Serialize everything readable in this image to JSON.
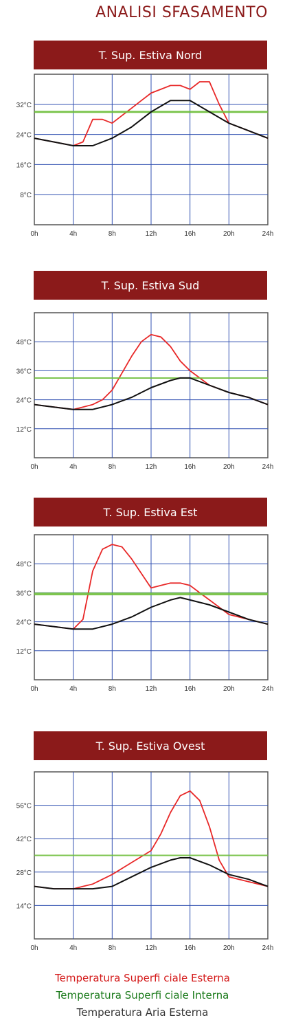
{
  "page": {
    "title": "ANALISI SFASAMENTO"
  },
  "colors": {
    "header_bg": "#8b1a1a",
    "surface_ext": "#e82828",
    "surface_int": "#6fbf3c",
    "air_ext": "#111111",
    "grid": "#2f4fb0"
  },
  "legend": {
    "red": "Temperatura Superfi ciale Esterna",
    "green": "Temperatura Superfi ciale Interna",
    "black": "Temperatura Aria Esterna"
  },
  "chart_data": [
    {
      "type": "line",
      "title": "T. Sup. Estiva Nord",
      "x_tick_labels": [
        "0h",
        "4h",
        "8h",
        "12h",
        "16h",
        "20h",
        "24h"
      ],
      "y_tick_labels": [
        "8°C",
        "16°C",
        "24°C",
        "32°C"
      ],
      "xlim": [
        0,
        24
      ],
      "ylim": [
        0,
        40
      ],
      "grid": true,
      "series": [
        {
          "name": "Temperatura Superfi ciale Esterna",
          "color": "#e82828",
          "x": [
            0,
            2,
            4,
            5,
            6,
            7,
            8,
            9,
            10,
            11,
            12,
            13,
            14,
            15,
            16,
            17,
            18,
            19,
            20,
            22,
            24
          ],
          "y": [
            23,
            22,
            21,
            22,
            28,
            28,
            27,
            29,
            31,
            33,
            35,
            36,
            37,
            37,
            36,
            38,
            38,
            32,
            27,
            25,
            23
          ]
        },
        {
          "name": "Temperatura Superfi ciale Interna",
          "color": "#6fbf3c",
          "constant": 30,
          "thickness": 3
        },
        {
          "name": "Temperatura Aria Esterna",
          "color": "#111111",
          "x": [
            0,
            2,
            4,
            6,
            8,
            10,
            12,
            14,
            15,
            16,
            18,
            20,
            22,
            24
          ],
          "y": [
            23,
            22,
            21,
            21,
            23,
            26,
            30,
            33,
            33,
            33,
            30,
            27,
            25,
            23
          ]
        }
      ]
    },
    {
      "type": "line",
      "title": "T. Sup. Estiva Sud",
      "x_tick_labels": [
        "0h",
        "4h",
        "8h",
        "12h",
        "16h",
        "20h",
        "24h"
      ],
      "y_tick_labels": [
        "12°C",
        "24°C",
        "36°C",
        "48°C"
      ],
      "xlim": [
        0,
        24
      ],
      "ylim": [
        0,
        60
      ],
      "grid": true,
      "series": [
        {
          "name": "Temperatura Superfi ciale Esterna",
          "color": "#e82828",
          "x": [
            0,
            2,
            4,
            5,
            6,
            7,
            8,
            9,
            10,
            11,
            12,
            13,
            14,
            15,
            16,
            17,
            18,
            20,
            22,
            24
          ],
          "y": [
            22,
            21,
            20,
            21,
            22,
            24,
            28,
            35,
            42,
            48,
            51,
            50,
            46,
            40,
            36,
            33,
            30,
            27,
            25,
            22
          ]
        },
        {
          "name": "Temperatura Superfi ciale Interna",
          "color": "#6fbf3c",
          "constant": 33,
          "thickness": 2
        },
        {
          "name": "Temperatura Aria Esterna",
          "color": "#111111",
          "x": [
            0,
            2,
            4,
            6,
            8,
            10,
            12,
            14,
            15,
            16,
            18,
            20,
            22,
            24
          ],
          "y": [
            22,
            21,
            20,
            20,
            22,
            25,
            29,
            32,
            33,
            33,
            30,
            27,
            25,
            22
          ]
        }
      ]
    },
    {
      "type": "line",
      "title": "T. Sup. Estiva Est",
      "x_tick_labels": [
        "0h",
        "4h",
        "8h",
        "12h",
        "16h",
        "20h",
        "24h"
      ],
      "y_tick_labels": [
        "12°C",
        "24°C",
        "36°C",
        "48°C"
      ],
      "xlim": [
        0,
        24
      ],
      "ylim": [
        0,
        60
      ],
      "grid": true,
      "series": [
        {
          "name": "Temperatura Superfi ciale Esterna",
          "color": "#e82828",
          "x": [
            0,
            2,
            4,
            5,
            6,
            7,
            8,
            9,
            10,
            11,
            12,
            13,
            14,
            15,
            16,
            17,
            18,
            20,
            22,
            24
          ],
          "y": [
            23,
            22,
            21,
            25,
            45,
            54,
            56,
            55,
            50,
            44,
            38,
            39,
            40,
            40,
            39,
            36,
            33,
            27,
            25,
            23
          ]
        },
        {
          "name": "Temperatura Superfi ciale Interna",
          "color": "#6fbf3c",
          "constant": 35.5,
          "thickness": 4
        },
        {
          "name": "Temperatura Aria Esterna",
          "color": "#111111",
          "x": [
            0,
            2,
            4,
            6,
            8,
            10,
            12,
            14,
            15,
            16,
            18,
            20,
            22,
            24
          ],
          "y": [
            23,
            22,
            21,
            21,
            23,
            26,
            30,
            33,
            34,
            33,
            31,
            28,
            25,
            23
          ]
        }
      ]
    },
    {
      "type": "line",
      "title": "T. Sup. Estiva Ovest",
      "x_tick_labels": [
        "0h",
        "4h",
        "8h",
        "12h",
        "16h",
        "20h",
        "24h"
      ],
      "y_tick_labels": [
        "14°C",
        "28°C",
        "42°C",
        "56°C"
      ],
      "xlim": [
        0,
        24
      ],
      "ylim": [
        0,
        70
      ],
      "grid": true,
      "series": [
        {
          "name": "Temperatura Superfi ciale Esterna",
          "color": "#e82828",
          "x": [
            0,
            2,
            4,
            5,
            6,
            8,
            10,
            12,
            13,
            14,
            15,
            16,
            17,
            18,
            19,
            20,
            22,
            24
          ],
          "y": [
            22,
            21,
            21,
            22,
            23,
            27,
            32,
            37,
            44,
            53,
            60,
            62,
            58,
            47,
            33,
            26,
            24,
            22
          ]
        },
        {
          "name": "Temperatura Superfi ciale Interna",
          "color": "#6fbf3c",
          "constant": 35,
          "thickness": 2
        },
        {
          "name": "Temperatura Aria Esterna",
          "color": "#111111",
          "x": [
            0,
            2,
            4,
            6,
            8,
            10,
            12,
            14,
            15,
            16,
            18,
            20,
            22,
            24
          ],
          "y": [
            22,
            21,
            21,
            21,
            22,
            26,
            30,
            33,
            34,
            34,
            31,
            27,
            25,
            22
          ]
        }
      ]
    }
  ]
}
